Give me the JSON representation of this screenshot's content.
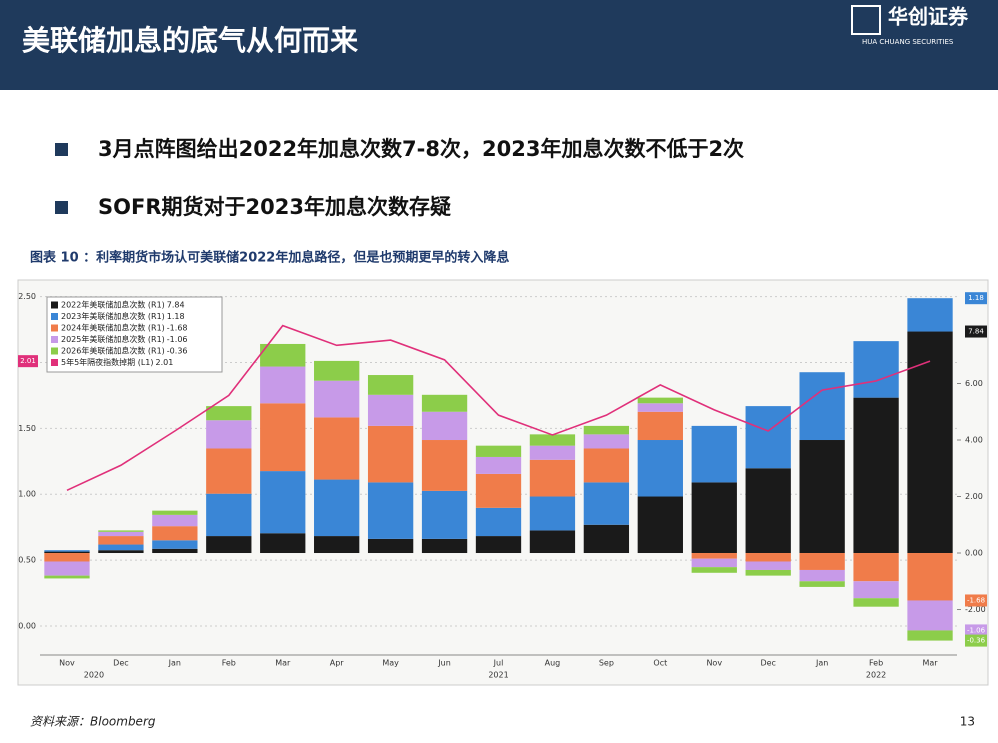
{
  "header": {
    "title": "美联储加息的底气从何而来",
    "logo": "华创证券",
    "logo_sub": "HUA CHUANG SECURITIES"
  },
  "bullets": [
    "3月点阵图给出2022年加息次数7-8次，2023年加息次数不低于2次",
    "SOFR期货对于2023年加息次数存疑"
  ],
  "figure_caption": "图表 10 ：利率期货市场认可美联储2022年加息路径，但是也预期更早的转入降息",
  "chart_data": {
    "type": "bar",
    "stacked": true,
    "grid": true,
    "legend": "top-left",
    "categories": [
      "Nov",
      "Dec",
      "Jan",
      "Feb",
      "Mar",
      "Apr",
      "May",
      "Jun",
      "Jul",
      "Aug",
      "Sep",
      "Oct",
      "Nov",
      "Dec",
      "Jan",
      "Feb",
      "Mar"
    ],
    "years": [
      "2020",
      "2021",
      "2022"
    ],
    "ylim": [
      -0.22,
      2.55
    ],
    "yticks": [
      {
        "value": 0,
        "label": "0.00"
      },
      {
        "value": 0.5,
        "label": "0.50"
      },
      {
        "value": 1,
        "label": "1.00"
      },
      {
        "value": 1.5,
        "label": "1.50"
      },
      {
        "value": 2,
        "label": "2.00"
      },
      {
        "value": 2.5,
        "label": "2.50"
      }
    ],
    "y2lim": [
      -3.61,
      9.31
    ],
    "y2ticks": [
      {
        "value": -2,
        "label": "-2.00"
      },
      {
        "value": 0,
        "label": "0.00"
      },
      {
        "value": 2,
        "label": "2.00"
      },
      {
        "value": 4,
        "label": "4.00"
      },
      {
        "value": 6,
        "label": "6.00"
      }
    ],
    "series": [
      {
        "name": "2022年美联储加息次数 (R1)",
        "color": "#1a1a1a",
        "axis": "y2",
        "values": [
          0.05,
          0.1,
          0.15,
          0.6,
          0.7,
          0.6,
          0.5,
          0.5,
          0.6,
          0.8,
          1.0,
          2.0,
          2.5,
          3.0,
          4.0,
          5.5,
          7.84
        ]
      },
      {
        "name": "2023年美联储加息次数 (R1)",
        "color": "#3a86d6",
        "axis": "y2",
        "values": [
          0.05,
          0.2,
          0.3,
          1.5,
          2.2,
          2.0,
          2.0,
          1.7,
          1.0,
          1.2,
          1.5,
          2.0,
          2.0,
          2.2,
          2.4,
          2.0,
          1.18
        ]
      },
      {
        "name": "2024年美联储加息次数 (R1)",
        "color": "#f07c4a",
        "axis": "y2",
        "values": [
          -0.3,
          0.3,
          0.5,
          1.6,
          2.4,
          2.2,
          2.0,
          1.8,
          1.2,
          1.3,
          1.2,
          1.0,
          -0.2,
          -0.3,
          -0.6,
          -1.0,
          -1.68
        ]
      },
      {
        "name": "2025年美联储加息次数 (R1)",
        "color": "#c79ae8",
        "axis": "y2",
        "values": [
          -0.5,
          0.15,
          0.4,
          1.0,
          1.3,
          1.3,
          1.1,
          1.0,
          0.6,
          0.5,
          0.5,
          0.3,
          -0.3,
          -0.3,
          -0.4,
          -0.6,
          -1.06
        ]
      },
      {
        "name": "2026年美联储加息次数 (R1)",
        "color": "#8ccd4a",
        "axis": "y2",
        "values": [
          -0.1,
          0.05,
          0.15,
          0.5,
          0.8,
          0.7,
          0.7,
          0.6,
          0.4,
          0.4,
          0.3,
          0.2,
          -0.2,
          -0.2,
          -0.2,
          -0.3,
          -0.36
        ]
      },
      {
        "name": "5年5年隔夜指数掉期 (L1)",
        "color": "#e0307a",
        "type": "line",
        "values": [
          1.03,
          1.22,
          1.48,
          1.75,
          2.28,
          2.13,
          2.17,
          2.02,
          1.6,
          1.45,
          1.6,
          1.83,
          1.64,
          1.48,
          1.79,
          1.86,
          2.01
        ]
      }
    ]
  },
  "source": "资料来源：Bloomberg",
  "page_number": "13"
}
